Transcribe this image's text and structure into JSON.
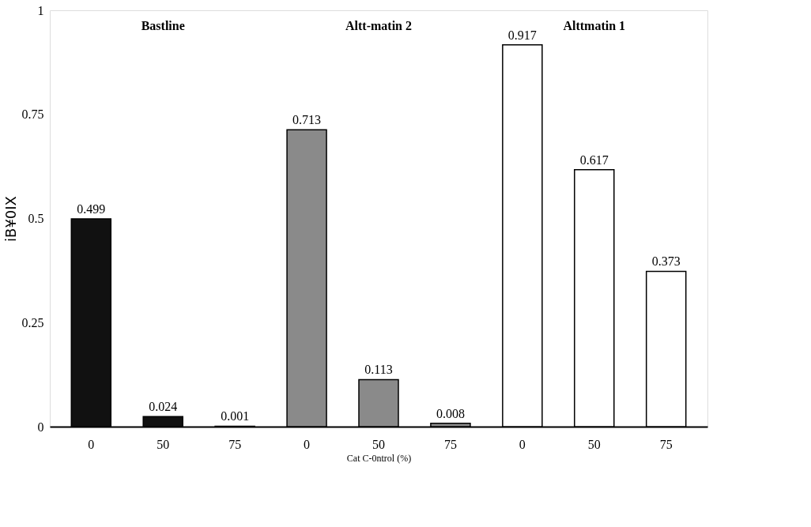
{
  "chart_data": {
    "type": "bar",
    "xlabel": "Cat C-0ntrol (%)",
    "ylabel": "iB¥0IX",
    "categories": [
      "0",
      "50",
      "75",
      "0",
      "50",
      "75",
      "0",
      "50",
      "75"
    ],
    "values": [
      0.499,
      0.024,
      0.001,
      0.713,
      0.113,
      0.008,
      0.917,
      0.617,
      0.373
    ],
    "colors": [
      "#111111",
      "#111111",
      "#111111",
      "#8a8a8a",
      "#8a8a8a",
      "#8a8a8a",
      "#ffffff",
      "#ffffff",
      "#ffffff"
    ],
    "ylim": [
      0,
      1
    ],
    "yticks": [
      0,
      0.25,
      0.5,
      0.75,
      1
    ],
    "data_labels": true,
    "grid": false,
    "annotations": [
      "Bastline",
      "Altt-matin 2",
      "Alttmatin 1"
    ]
  }
}
